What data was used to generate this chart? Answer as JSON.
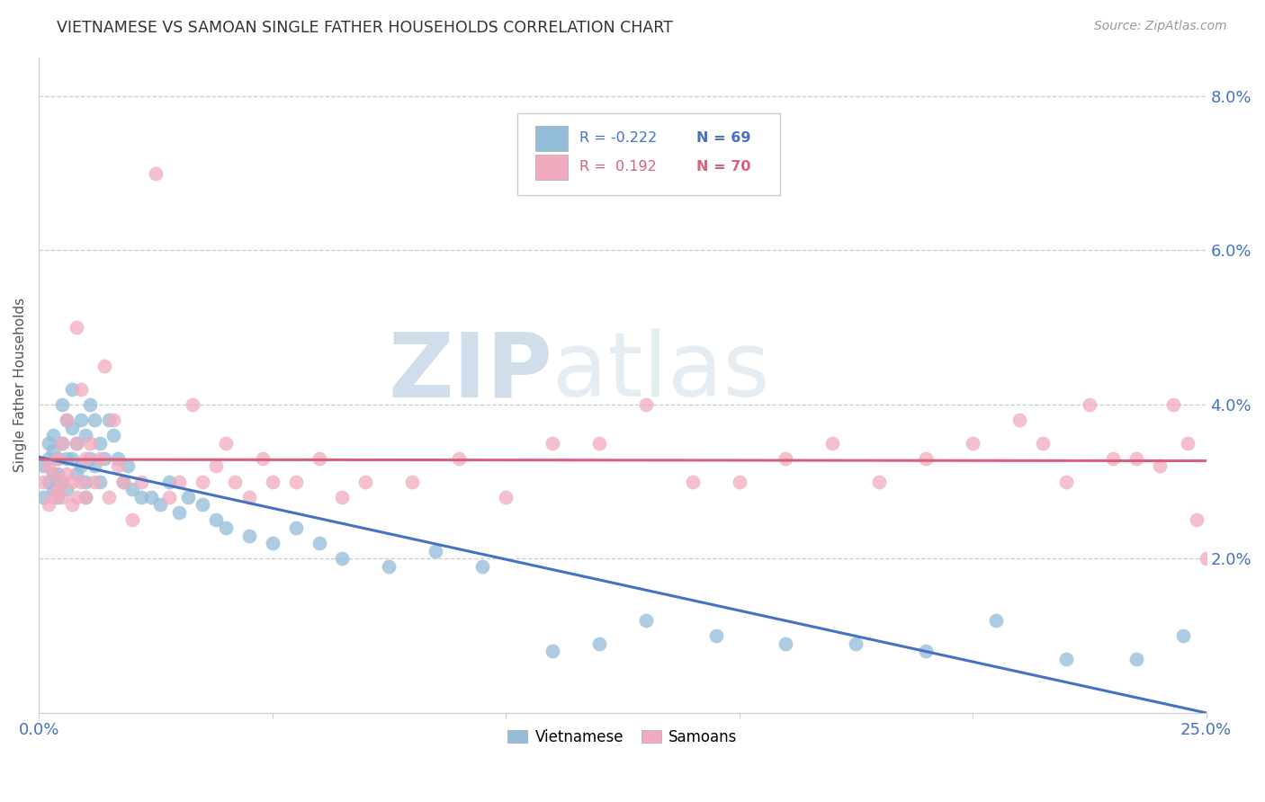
{
  "title": "VIETNAMESE VS SAMOAN SINGLE FATHER HOUSEHOLDS CORRELATION CHART",
  "source": "Source: ZipAtlas.com",
  "ylabel": "Single Father Households",
  "xlim": [
    0.0,
    0.25
  ],
  "ylim": [
    0.0,
    0.085
  ],
  "xticks": [
    0.0,
    0.05,
    0.1,
    0.15,
    0.2,
    0.25
  ],
  "yticks": [
    0.0,
    0.02,
    0.04,
    0.06,
    0.08
  ],
  "xticklabels": [
    "0.0%",
    "",
    "",
    "",
    "",
    "25.0%"
  ],
  "yticklabels_right": [
    "",
    "2.0%",
    "4.0%",
    "6.0%",
    "8.0%"
  ],
  "blue_color": "#92BCD8",
  "pink_color": "#F2ABBE",
  "blue_line_color": "#4472C4",
  "pink_line_color": "#D9607A",
  "watermark_zip": "ZIP",
  "watermark_atlas": "atlas",
  "vietnamese_x": [
    0.001,
    0.001,
    0.002,
    0.002,
    0.002,
    0.003,
    0.003,
    0.003,
    0.003,
    0.004,
    0.004,
    0.004,
    0.005,
    0.005,
    0.005,
    0.006,
    0.006,
    0.006,
    0.007,
    0.007,
    0.007,
    0.008,
    0.008,
    0.009,
    0.009,
    0.01,
    0.01,
    0.01,
    0.011,
    0.011,
    0.012,
    0.012,
    0.013,
    0.013,
    0.014,
    0.015,
    0.016,
    0.017,
    0.018,
    0.019,
    0.02,
    0.022,
    0.024,
    0.026,
    0.028,
    0.03,
    0.032,
    0.035,
    0.038,
    0.04,
    0.045,
    0.05,
    0.055,
    0.06,
    0.065,
    0.075,
    0.085,
    0.095,
    0.11,
    0.12,
    0.13,
    0.145,
    0.16,
    0.175,
    0.19,
    0.205,
    0.22,
    0.235,
    0.245
  ],
  "vietnamese_y": [
    0.028,
    0.032,
    0.03,
    0.035,
    0.033,
    0.031,
    0.034,
    0.029,
    0.036,
    0.033,
    0.028,
    0.031,
    0.04,
    0.035,
    0.03,
    0.038,
    0.033,
    0.029,
    0.042,
    0.037,
    0.033,
    0.035,
    0.031,
    0.038,
    0.032,
    0.036,
    0.03,
    0.028,
    0.04,
    0.033,
    0.038,
    0.032,
    0.035,
    0.03,
    0.033,
    0.038,
    0.036,
    0.033,
    0.03,
    0.032,
    0.029,
    0.028,
    0.028,
    0.027,
    0.03,
    0.026,
    0.028,
    0.027,
    0.025,
    0.024,
    0.023,
    0.022,
    0.024,
    0.022,
    0.02,
    0.019,
    0.021,
    0.019,
    0.008,
    0.009,
    0.012,
    0.01,
    0.009,
    0.009,
    0.008,
    0.012,
    0.007,
    0.007,
    0.01
  ],
  "samoan_x": [
    0.001,
    0.002,
    0.002,
    0.003,
    0.003,
    0.004,
    0.004,
    0.005,
    0.005,
    0.005,
    0.006,
    0.006,
    0.007,
    0.007,
    0.008,
    0.008,
    0.008,
    0.009,
    0.009,
    0.01,
    0.01,
    0.011,
    0.012,
    0.013,
    0.014,
    0.015,
    0.016,
    0.017,
    0.018,
    0.02,
    0.022,
    0.025,
    0.028,
    0.03,
    0.033,
    0.035,
    0.038,
    0.04,
    0.042,
    0.045,
    0.048,
    0.05,
    0.055,
    0.06,
    0.065,
    0.07,
    0.08,
    0.09,
    0.1,
    0.11,
    0.12,
    0.13,
    0.14,
    0.15,
    0.16,
    0.17,
    0.18,
    0.19,
    0.2,
    0.21,
    0.215,
    0.22,
    0.225,
    0.23,
    0.235,
    0.24,
    0.243,
    0.246,
    0.248,
    0.25
  ],
  "samoan_y": [
    0.03,
    0.032,
    0.027,
    0.031,
    0.028,
    0.033,
    0.029,
    0.03,
    0.035,
    0.028,
    0.031,
    0.038,
    0.027,
    0.03,
    0.035,
    0.05,
    0.028,
    0.042,
    0.03,
    0.033,
    0.028,
    0.035,
    0.03,
    0.033,
    0.045,
    0.028,
    0.038,
    0.032,
    0.03,
    0.025,
    0.03,
    0.07,
    0.028,
    0.03,
    0.04,
    0.03,
    0.032,
    0.035,
    0.03,
    0.028,
    0.033,
    0.03,
    0.03,
    0.033,
    0.028,
    0.03,
    0.03,
    0.033,
    0.028,
    0.035,
    0.035,
    0.04,
    0.03,
    0.03,
    0.033,
    0.035,
    0.03,
    0.033,
    0.035,
    0.038,
    0.035,
    0.03,
    0.04,
    0.033,
    0.033,
    0.032,
    0.04,
    0.035,
    0.025,
    0.02
  ]
}
